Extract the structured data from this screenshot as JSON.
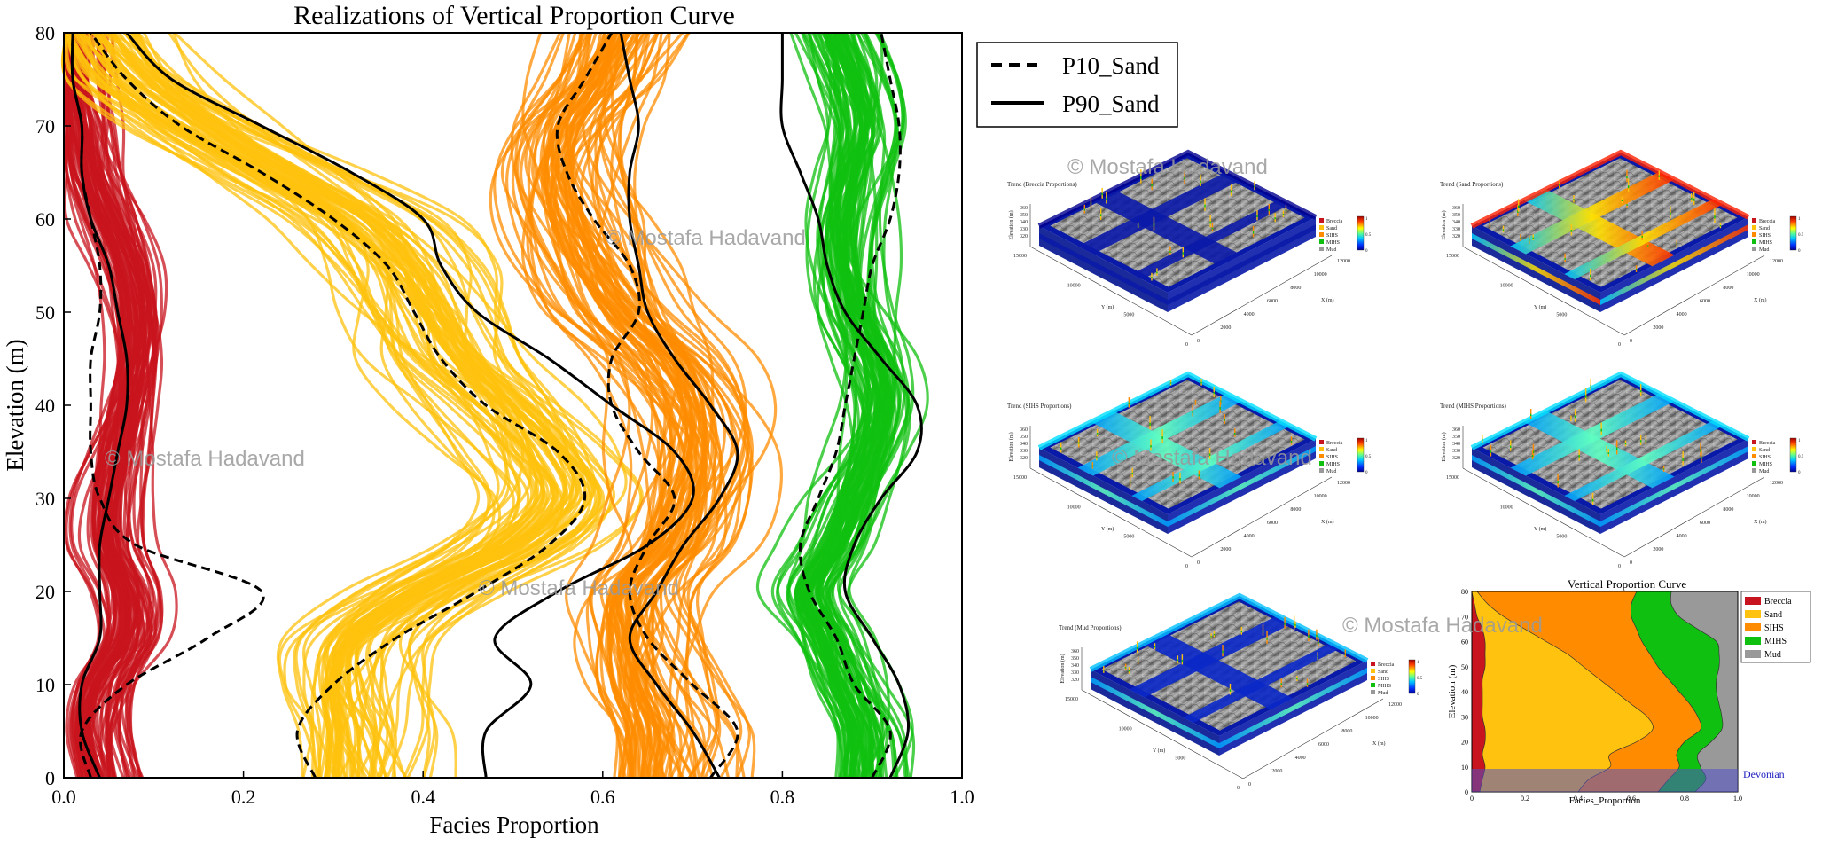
{
  "chart_data": [
    {
      "type": "line",
      "title": "Realizations of Vertical Proportion Curve",
      "xlabel": "Facies  Proportion",
      "ylabel": "Elevation (m)",
      "xlim": [
        0,
        1
      ],
      "ylim": [
        0,
        80
      ],
      "xticks": [
        "0.0",
        "0.2",
        "0.4",
        "0.6",
        "0.8",
        "1.0"
      ],
      "yticks": [
        "0",
        "10",
        "20",
        "30",
        "40",
        "50",
        "60",
        "70",
        "80"
      ],
      "legend": {
        "placement": "outside-top-right",
        "entries": [
          {
            "label": "P10_Sand",
            "style": "dashed"
          },
          {
            "label": "P90_Sand",
            "style": "solid"
          }
        ]
      },
      "y_samples": [
        0,
        5,
        10,
        15,
        20,
        25,
        30,
        35,
        40,
        45,
        50,
        55,
        60,
        65,
        70,
        75,
        80
      ],
      "bands": [
        {
          "facies": "Breccia",
          "color": "#c8141e",
          "center": [
            0.04,
            0.03,
            0.04,
            0.07,
            0.07,
            0.05,
            0.05,
            0.06,
            0.07,
            0.08,
            0.08,
            0.07,
            0.05,
            0.03,
            0.02,
            0.01,
            0.01
          ],
          "spread": 0.04
        },
        {
          "facies": "Sand",
          "color": "#ffc20e",
          "center": [
            0.33,
            0.33,
            0.32,
            0.33,
            0.4,
            0.5,
            0.55,
            0.53,
            0.49,
            0.44,
            0.41,
            0.38,
            0.33,
            0.24,
            0.15,
            0.08,
            0.04
          ],
          "spread": 0.09
        },
        {
          "facies": "SIHS",
          "color": "#ff8c00",
          "center": [
            0.66,
            0.66,
            0.64,
            0.63,
            0.63,
            0.67,
            0.69,
            0.7,
            0.69,
            0.66,
            0.61,
            0.58,
            0.56,
            0.55,
            0.56,
            0.59,
            0.61
          ],
          "spread": 0.09
        },
        {
          "facies": "MIHS",
          "color": "#10c010",
          "center": [
            0.89,
            0.89,
            0.87,
            0.85,
            0.83,
            0.86,
            0.88,
            0.9,
            0.91,
            0.9,
            0.88,
            0.87,
            0.87,
            0.88,
            0.89,
            0.88,
            0.86
          ],
          "spread": 0.05
        }
      ],
      "series": [
        {
          "name": "P10_Sand",
          "style": "dashed",
          "x": [
            0.28,
            0.26,
            0.3,
            0.37,
            0.46,
            0.54,
            0.58,
            0.55,
            0.47,
            0.42,
            0.39,
            0.36,
            0.3,
            0.22,
            0.13,
            0.07,
            0.03
          ]
        },
        {
          "name": "P90_Sand",
          "style": "solid",
          "x": [
            0.47,
            0.47,
            0.52,
            0.48,
            0.55,
            0.65,
            0.7,
            0.68,
            0.61,
            0.54,
            0.46,
            0.42,
            0.4,
            0.32,
            0.22,
            0.12,
            0.07
          ]
        },
        {
          "name": "P10_Sand",
          "style": "dashed",
          "x": [
            0.03,
            0.02,
            0.07,
            0.16,
            0.22,
            0.08,
            0.04,
            0.03,
            0.03,
            0.03,
            0.04,
            0.04,
            0.03,
            0.02,
            0.02,
            0.01,
            0.01
          ]
        },
        {
          "name": "P90_Sand",
          "style": "solid",
          "x": [
            0.04,
            0.02,
            0.02,
            0.04,
            0.04,
            0.04,
            0.05,
            0.06,
            0.07,
            0.07,
            0.06,
            0.05,
            0.03,
            0.02,
            0.02,
            0.01,
            0.01
          ]
        },
        {
          "name": "P10_Sand",
          "style": "dashed",
          "x": [
            0.72,
            0.75,
            0.7,
            0.65,
            0.63,
            0.65,
            0.68,
            0.64,
            0.61,
            0.61,
            0.64,
            0.63,
            0.59,
            0.56,
            0.55,
            0.58,
            0.61
          ]
        },
        {
          "name": "P90_Sand",
          "style": "solid",
          "x": [
            0.73,
            0.7,
            0.66,
            0.63,
            0.66,
            0.69,
            0.73,
            0.75,
            0.72,
            0.68,
            0.65,
            0.64,
            0.63,
            0.63,
            0.64,
            0.63,
            0.62
          ]
        },
        {
          "name": "P10_Sand",
          "style": "dashed",
          "x": [
            0.9,
            0.92,
            0.88,
            0.86,
            0.83,
            0.82,
            0.84,
            0.86,
            0.87,
            0.88,
            0.89,
            0.9,
            0.92,
            0.93,
            0.93,
            0.92,
            0.91
          ]
        },
        {
          "name": "P90_Sand",
          "style": "solid",
          "x": [
            0.92,
            0.94,
            0.93,
            0.9,
            0.87,
            0.88,
            0.91,
            0.95,
            0.95,
            0.91,
            0.87,
            0.85,
            0.84,
            0.82,
            0.8,
            0.8,
            0.8
          ]
        }
      ]
    },
    {
      "type": "area",
      "title": "Vertical Proportion Curve",
      "xlabel": "Facies_Proportion",
      "ylabel": "Elevation (m)",
      "xlim": [
        0,
        1
      ],
      "ylim": [
        0,
        80
      ],
      "xticks": [
        "0",
        "0.2",
        "0.4",
        "0.6",
        "0.8",
        "1.0"
      ],
      "yticks": [
        "0",
        "10",
        "20",
        "30",
        "40",
        "50",
        "60",
        "70",
        "80"
      ],
      "y": [
        0,
        5,
        10,
        15,
        20,
        25,
        30,
        35,
        40,
        45,
        50,
        55,
        60,
        65,
        70,
        75,
        80
      ],
      "cumulative_boundaries": [
        {
          "below": "Breccia",
          "x": [
            0.03,
            0.04,
            0.05,
            0.04,
            0.05,
            0.05,
            0.04,
            0.04,
            0.04,
            0.04,
            0.05,
            0.05,
            0.05,
            0.04,
            0.02,
            0.01,
            0.0
          ]
        },
        {
          "below": "Sand",
          "x": [
            0.4,
            0.44,
            0.52,
            0.52,
            0.62,
            0.68,
            0.66,
            0.6,
            0.54,
            0.48,
            0.42,
            0.36,
            0.28,
            0.2,
            0.12,
            0.06,
            0.02
          ]
        },
        {
          "below": "SIHS",
          "x": [
            0.7,
            0.74,
            0.78,
            0.77,
            0.8,
            0.86,
            0.85,
            0.82,
            0.78,
            0.74,
            0.7,
            0.67,
            0.64,
            0.62,
            0.6,
            0.6,
            0.62
          ]
        },
        {
          "below": "MIHS",
          "x": [
            0.84,
            0.88,
            0.86,
            0.85,
            0.9,
            0.94,
            0.94,
            0.93,
            0.92,
            0.92,
            0.93,
            0.93,
            0.92,
            0.85,
            0.78,
            0.75,
            0.75
          ]
        }
      ],
      "legend": {
        "placement": "outside-right",
        "entries": [
          {
            "label": "Breccia",
            "color": "#c8141e"
          },
          {
            "label": "Sand",
            "color": "#ffc20e"
          },
          {
            "label": "SIHS",
            "color": "#ff8c00"
          },
          {
            "label": "MIHS",
            "color": "#10c010"
          },
          {
            "label": "Mud",
            "color": "#999999"
          }
        ]
      },
      "annotation": {
        "label": "Devonian",
        "y_range": [
          0,
          9
        ]
      }
    }
  ],
  "panels": [
    {
      "title": "Trend (Breccia Proportions)",
      "palette": "breccia"
    },
    {
      "title": "Trend (Sand Proportions)",
      "palette": "sand"
    },
    {
      "title": "Trend (SIHS Proportions)",
      "palette": "sihs"
    },
    {
      "title": "Trend (MIHS Proportions)",
      "palette": "mihs"
    },
    {
      "title": "Trend (Mud Proportions)",
      "palette": "mud"
    }
  ],
  "panel_legend": {
    "entries": [
      {
        "label": "Breccia",
        "color": "#c8141e"
      },
      {
        "label": "Sand",
        "color": "#ffc20e"
      },
      {
        "label": "SIHS",
        "color": "#ff8c00"
      },
      {
        "label": "MIHS",
        "color": "#10c010"
      },
      {
        "label": "Mud",
        "color": "#999999"
      }
    ],
    "colorbar_ticks": [
      "1",
      "0.5",
      "0"
    ]
  },
  "panel_axes": {
    "ylabel": "Elevation (m)",
    "yticks": [
      "360",
      "350",
      "340",
      "330",
      "320"
    ],
    "ylabel_x": "Y (m)",
    "yaxis_ticks": [
      "15000",
      "10000",
      "5000",
      "0"
    ],
    "xlabel_x": "X (m)",
    "xaxis_ticks": [
      "12000",
      "10000",
      "8000",
      "6000",
      "4000",
      "2000",
      "0"
    ]
  },
  "watermarks": [
    "© Mostafa Hadavand",
    "© Mostafa Hadavand",
    "© Mostafa Hadavand",
    "© Mostafa Hadavand",
    "© Mostafa Hadavand",
    "© Mostafa Hadavand"
  ]
}
